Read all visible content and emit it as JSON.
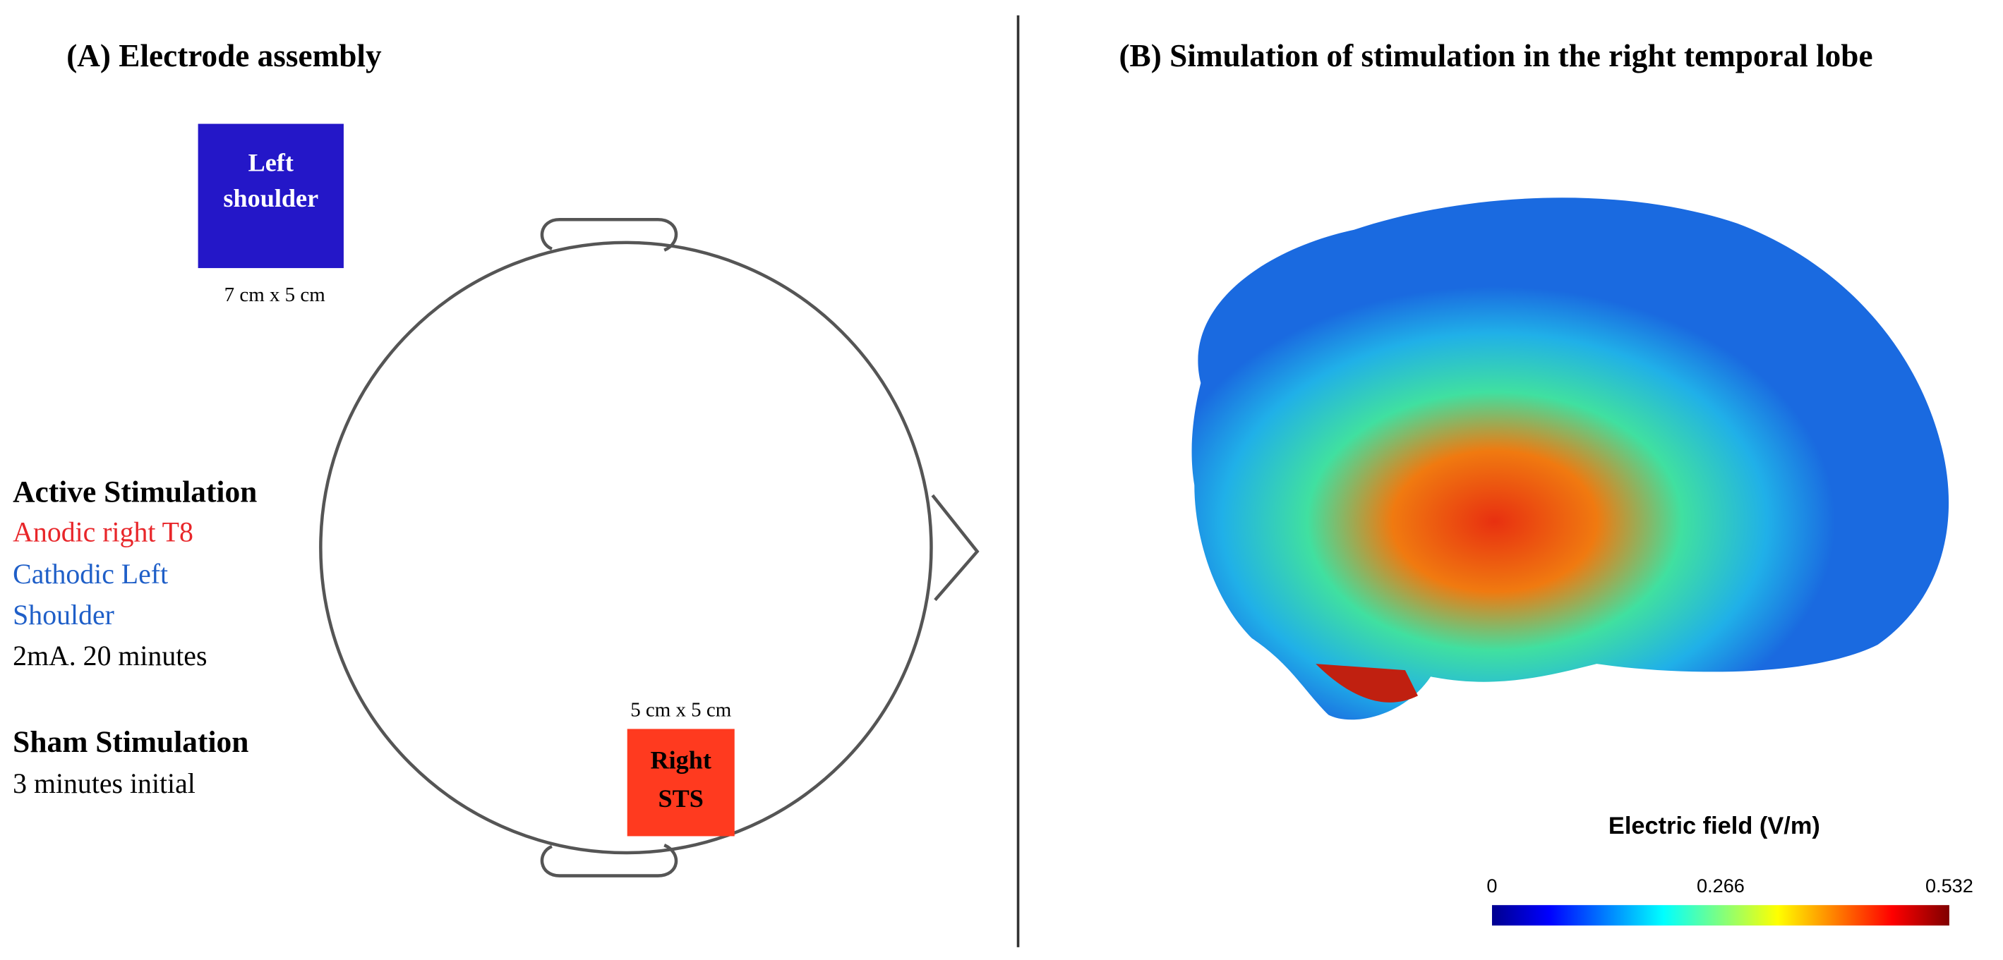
{
  "panel_a": {
    "title": "(A) Electrode assembly",
    "electrodes": [
      {
        "label_lines": [
          "Left",
          "shoulder"
        ],
        "size": "7 cm x 5 cm"
      },
      {
        "label_lines": [
          "Right",
          "STS"
        ],
        "size": "5 cm x 5 cm"
      }
    ],
    "active": {
      "heading": "Active Stimulation",
      "lines": [
        "Anodic right T8",
        "Cathodic Left",
        "Shoulder",
        "2mA. 20 minutes"
      ]
    },
    "sham": {
      "heading": "Sham Stimulation",
      "lines": [
        "3 minutes initial"
      ]
    }
  },
  "panel_b": {
    "title": "(B) Simulation of stimulation in the right temporal lobe",
    "colorbar": {
      "title": "Electric field (V/m)",
      "lim": [
        0,
        0.532
      ],
      "ticks": [
        0,
        0.266,
        0.532
      ]
    }
  }
}
